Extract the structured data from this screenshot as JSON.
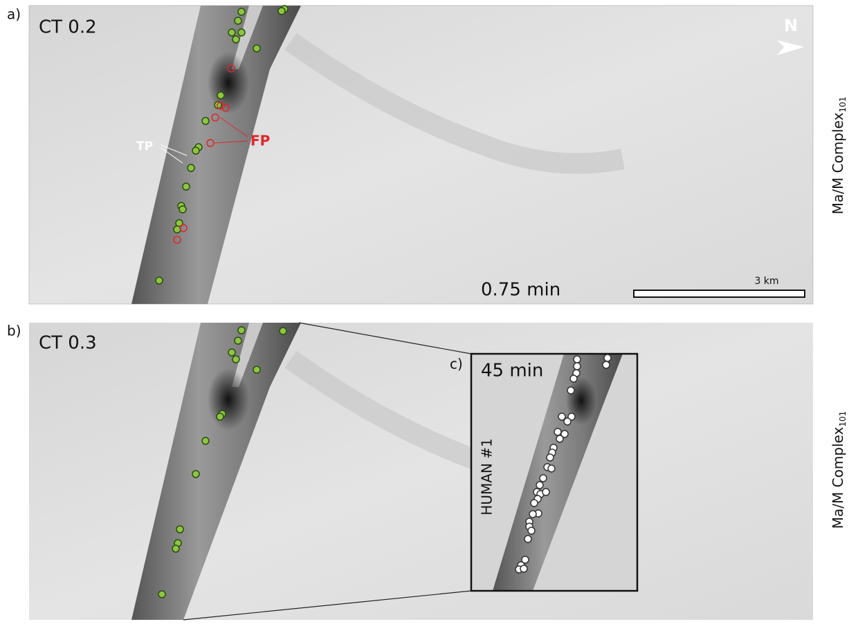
{
  "panels": [
    {
      "label": "a)",
      "title": "CT 0.2",
      "annotations": {
        "tp": "TP",
        "fp": "FP"
      },
      "north": "N",
      "time": "0.75 min",
      "scale_bar": "3 km",
      "side_label": {
        "text": "Ma/M Complex",
        "subscript": "101"
      }
    },
    {
      "label": "b)",
      "title": "CT 0.3",
      "side_label": {
        "text": "Ma/M Complex",
        "subscript": "101"
      }
    }
  ],
  "inset": {
    "label": "c)",
    "time": "45 min",
    "annotator": "HUMAN #1"
  }
}
